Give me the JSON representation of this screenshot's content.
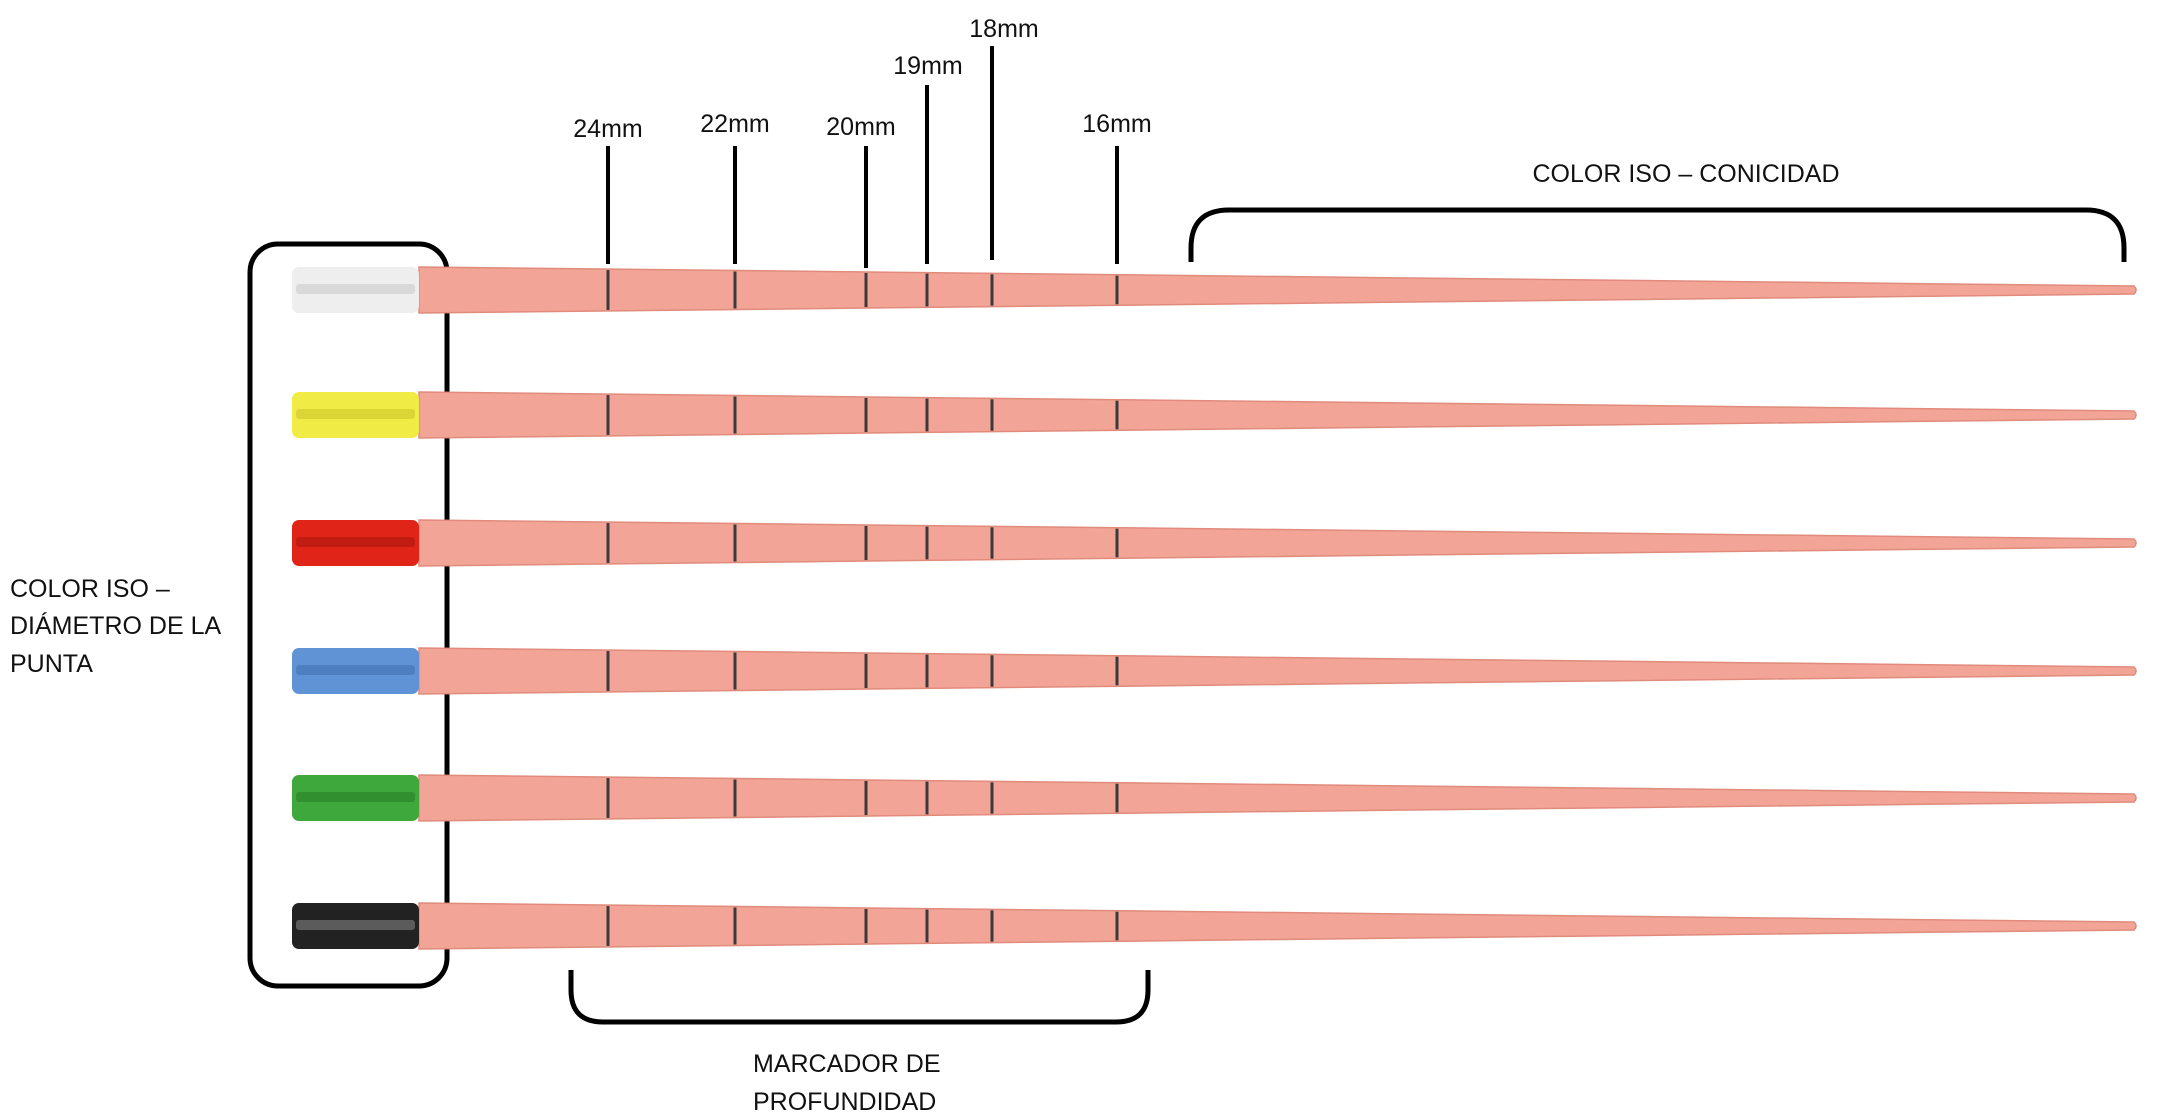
{
  "depth_markers": [
    {
      "label": "24mm"
    },
    {
      "label": "22mm"
    },
    {
      "label": "20mm"
    },
    {
      "label": "19mm"
    },
    {
      "label": "18mm"
    },
    {
      "label": "16mm"
    }
  ],
  "labels": {
    "taper_color": "COLOR ISO – CONICIDAD",
    "tip_color_lines": [
      "COLOR ISO –",
      "DIÁMETRO DE LA",
      "PUNTA"
    ],
    "depth_marker_lines": [
      "MARCADOR DE",
      "PROFUNDIDAD"
    ]
  },
  "instruments": [
    {
      "name": "white",
      "handle_color": "#eeeeee",
      "handle_shade": "#c9c9c9"
    },
    {
      "name": "yellow",
      "handle_color": "#f1ec45",
      "handle_shade": "#c8c22a"
    },
    {
      "name": "red",
      "handle_color": "#e02418",
      "handle_shade": "#a8150c"
    },
    {
      "name": "blue",
      "handle_color": "#5f93d6",
      "handle_shade": "#3f6fae"
    },
    {
      "name": "green",
      "handle_color": "#3ea83c",
      "handle_shade": "#277a26"
    },
    {
      "name": "black",
      "handle_color": "#222222",
      "handle_shade": "#8a8a8a"
    }
  ],
  "colors": {
    "shaft": "#f2a597",
    "shaft_edge": "#e08b7c",
    "marker": "#3a3a3a",
    "outline": "#000000"
  }
}
